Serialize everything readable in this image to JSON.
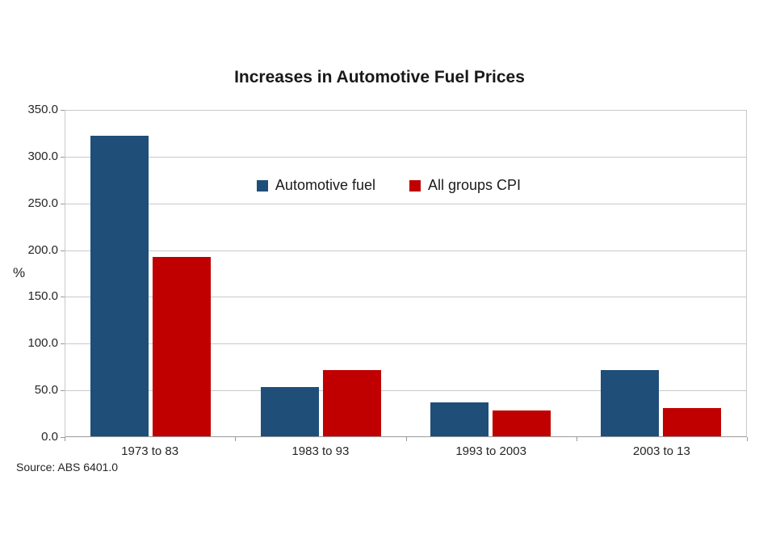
{
  "window": {
    "background": "#ffffff"
  },
  "chart_data": {
    "type": "bar",
    "title": "Increases in Automotive Fuel Prices",
    "categories": [
      "1973 to 83",
      "1983 to 93",
      "1993 to 2003",
      "2003 to 13"
    ],
    "series": [
      {
        "name": "Automotive fuel",
        "color": "#1F4E79",
        "values": [
          322,
          53,
          36,
          71
        ]
      },
      {
        "name": "All groups CPI",
        "color": "#C00000",
        "values": [
          192,
          71,
          28,
          30
        ]
      }
    ],
    "xlabel": "",
    "ylabel": "%",
    "ylim": [
      0,
      350
    ],
    "ytick_step": 50,
    "ytick_labels": [
      "0.0",
      "50.0",
      "100.0",
      "150.0",
      "200.0",
      "250.0",
      "300.0",
      "350.0"
    ],
    "grid": "horizontal",
    "gridline_color": "#c9c9c9",
    "axis_color": "#9a9a9a",
    "legend_position": "top-center-inside",
    "source": "Source: ABS 6401.0"
  }
}
